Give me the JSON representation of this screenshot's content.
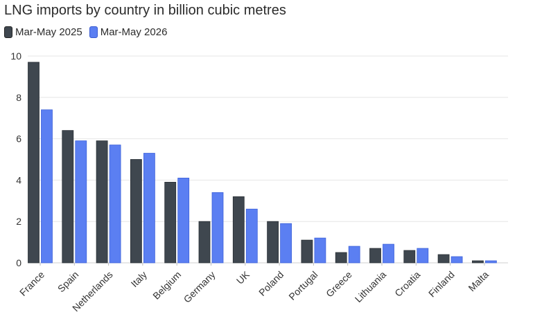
{
  "chart_data": {
    "type": "bar",
    "title": "LNG imports by country in billion cubic metres",
    "categories": [
      "France",
      "Spain",
      "Netherlands",
      "Italy",
      "Belgium",
      "Germany",
      "UK",
      "Poland",
      "Portugal",
      "Greece",
      "Lithuania",
      "Croatia",
      "Finland",
      "Malta"
    ],
    "series": [
      {
        "name": "Mar-May 2025",
        "color": "#3f474f",
        "values": [
          9.7,
          6.4,
          5.9,
          5.0,
          3.9,
          2.0,
          3.2,
          2.0,
          1.1,
          0.5,
          0.7,
          0.6,
          0.4,
          0.1
        ]
      },
      {
        "name": "Mar-May 2026",
        "color": "#5b7ff2",
        "values": [
          7.4,
          5.9,
          5.7,
          5.3,
          4.1,
          3.4,
          2.6,
          1.9,
          1.2,
          0.8,
          0.9,
          0.7,
          0.3,
          0.1
        ]
      }
    ],
    "ylim": [
      0,
      10
    ],
    "yticks": [
      0,
      2,
      4,
      6,
      8,
      10
    ],
    "grid": true,
    "legend_position": "top-left",
    "xlabel": "",
    "ylabel": ""
  }
}
